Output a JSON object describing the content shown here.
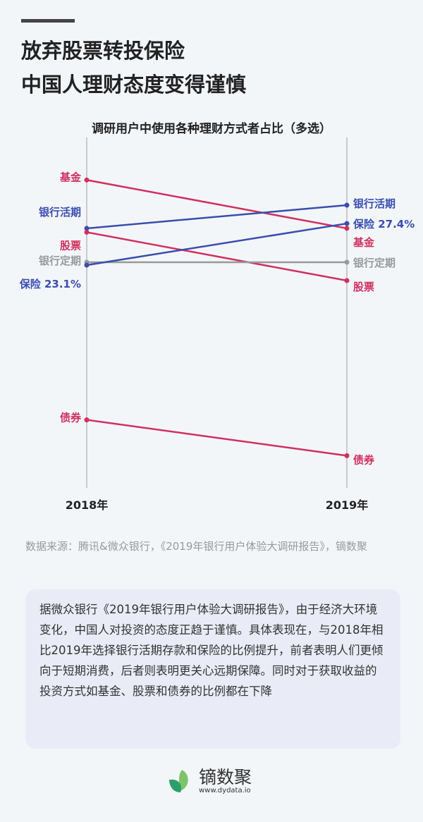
{
  "header": {
    "title_line1": "放弃股票转投保险",
    "title_line2": "中国人理财态度变得谨慎"
  },
  "chart_data": {
    "type": "slope",
    "title": "调研用户中使用各种理财方式者占比（多选）",
    "categories": [
      "2018年",
      "2019年"
    ],
    "ylim": [
      0,
      34
    ],
    "grid": false,
    "series": [
      {
        "name": "基金",
        "values": [
          31.9,
          26.9
        ],
        "color": "#d0305e",
        "labels": [
          "基金",
          "基金"
        ]
      },
      {
        "name": "银行活期",
        "values": [
          26.9,
          29.3
        ],
        "color": "#3a4db0",
        "labels": [
          "银行活期",
          "银行活期"
        ]
      },
      {
        "name": "股票",
        "values": [
          26.5,
          21.5
        ],
        "color": "#d0305e",
        "labels": [
          "股票",
          "股票"
        ]
      },
      {
        "name": "银行定期",
        "values": [
          23.4,
          23.4
        ],
        "color": "#999999",
        "labels": [
          "银行定期",
          "银行定期"
        ]
      },
      {
        "name": "保险",
        "values": [
          23.1,
          27.4
        ],
        "color": "#3a4db0",
        "labels": [
          "保险 23.1%",
          "保险 27.4%"
        ]
      },
      {
        "name": "债券",
        "values": [
          7.1,
          3.4
        ],
        "color": "#d0305e",
        "labels": [
          "债券",
          "债券"
        ]
      }
    ]
  },
  "source": "数据来源：腾讯&微众银行，《2019年银行用户体验大调研报告》，镝数聚",
  "summary": "据微众银行《2019年银行用户体验大调研报告》，由于经济大环境变化，中国人对投资的态度正趋于谨慎。具体表现在，与2018年相比2019年选择银行活期存款和保险的比例提升，前者表明人们更倾向于短期消费，后者则表明更关心远期保障。同时对于获取收益的投资方式如基金、股票和债券的比例都在下降",
  "logo": {
    "name": "镝数聚",
    "url": "www.dydata.io",
    "colors": [
      "#2e9e6a",
      "#7cc46a"
    ]
  }
}
